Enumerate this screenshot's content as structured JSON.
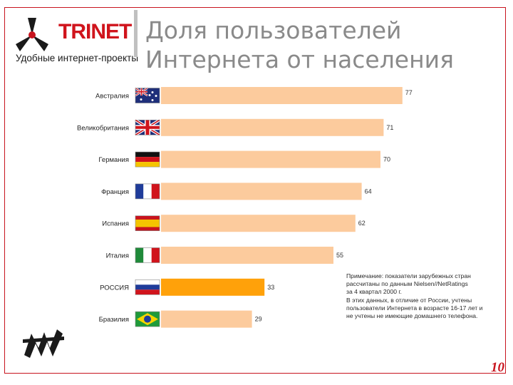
{
  "header": {
    "brand": "TRINET",
    "tagline": "Удобные интернет-проекты",
    "title_line1": "Доля пользователей",
    "title_line2": "Интернета от населения"
  },
  "chart_data": {
    "type": "bar",
    "orientation": "horizontal",
    "categories": [
      "Австралия",
      "Великобритания",
      "Германия",
      "Франция",
      "Испания",
      "Италия",
      "РОССИЯ",
      "Бразилия"
    ],
    "values": [
      77,
      71,
      70,
      64,
      62,
      55,
      33,
      29
    ],
    "value_labels": [
      "77",
      "71",
      "70",
      "64",
      "62",
      "55",
      "33",
      "29"
    ],
    "flags": [
      "australia",
      "uk",
      "germany",
      "france",
      "spain",
      "italy",
      "russia",
      "brazil"
    ],
    "highlight_index": 6,
    "colors": {
      "bar": "#fccb9d",
      "highlight": "#ffa10a",
      "label": "#333333"
    },
    "grid": false,
    "legend": "none"
  },
  "note": {
    "lines": [
      "Примечание: показатели зарубежных стран",
      "рассчитаны по данным Nielsen//NetRatings",
      "за 4 квартал 2000 г.",
      "В этих данных, в отличие от России, учтены",
      "пользователи Интернета в возрасте 16-17 лет и",
      "не учтены не имеющие домашнего телефона."
    ]
  },
  "footer": {
    "page_number": "10"
  },
  "colors": {
    "accent": "#c8141e",
    "title": "#8a8a8a"
  }
}
